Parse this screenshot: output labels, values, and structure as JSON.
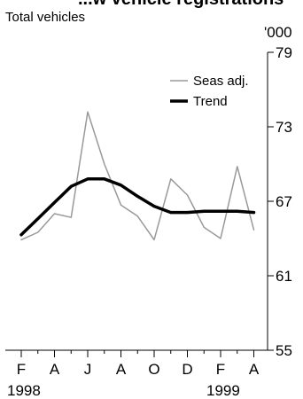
{
  "chart_data": {
    "type": "line",
    "title": "",
    "cut_off_title": "...w vehicle registrations",
    "subtitle": "Total vehicles",
    "unit_label": "'000",
    "ylim": [
      55,
      79
    ],
    "yticks": [
      55,
      61,
      67,
      73,
      79
    ],
    "x_tick_labels": [
      "F",
      "A",
      "J",
      "A",
      "O",
      "D",
      "F",
      "A"
    ],
    "x_year_labels": [
      "1998",
      "1999"
    ],
    "x": [
      "1998-02",
      "1998-03",
      "1998-04",
      "1998-05",
      "1998-06",
      "1998-07",
      "1998-08",
      "1998-09",
      "1998-10",
      "1998-11",
      "1998-12",
      "1999-01",
      "1999-02",
      "1999-03",
      "1999-04"
    ],
    "legend_position": "top-right",
    "series": [
      {
        "name": "Seas adj.",
        "color": "#999999",
        "style": "thin",
        "values": [
          63.9,
          64.5,
          66.0,
          65.7,
          74.2,
          70.0,
          66.7,
          65.8,
          63.9,
          68.8,
          67.5,
          64.9,
          64.0,
          69.8,
          64.7
        ]
      },
      {
        "name": "Trend",
        "color": "#000000",
        "style": "thick",
        "values": [
          64.3,
          65.6,
          66.9,
          68.2,
          68.8,
          68.8,
          68.3,
          67.4,
          66.6,
          66.1,
          66.1,
          66.2,
          66.2,
          66.2,
          66.1
        ]
      }
    ]
  }
}
